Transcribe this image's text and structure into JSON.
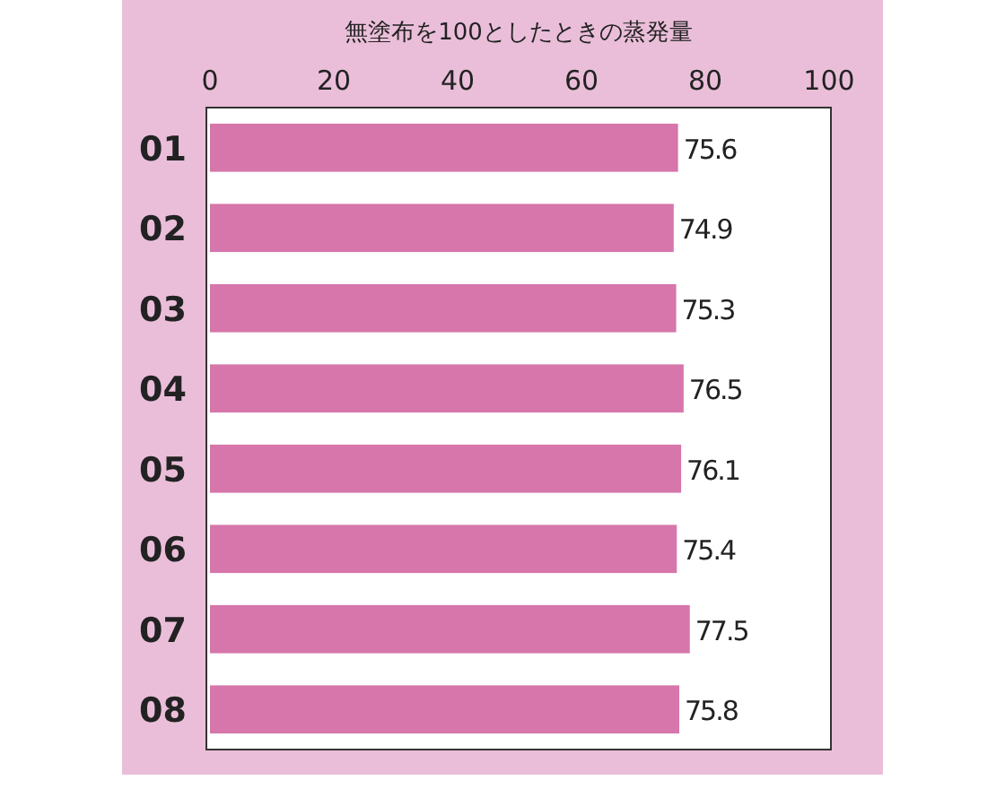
{
  "chart_data": {
    "type": "bar",
    "orientation": "horizontal",
    "title": "無塗布を100としたときの蒸発量",
    "categories": [
      "01",
      "02",
      "03",
      "04",
      "05",
      "06",
      "07",
      "08"
    ],
    "values": [
      75.6,
      74.9,
      75.3,
      76.5,
      76.1,
      75.4,
      77.5,
      75.8
    ],
    "color": "#d676ab",
    "xlim": [
      0,
      100
    ],
    "xticks": [
      0,
      20,
      40,
      60,
      80,
      100
    ],
    "grid": false,
    "data_labels": true
  }
}
